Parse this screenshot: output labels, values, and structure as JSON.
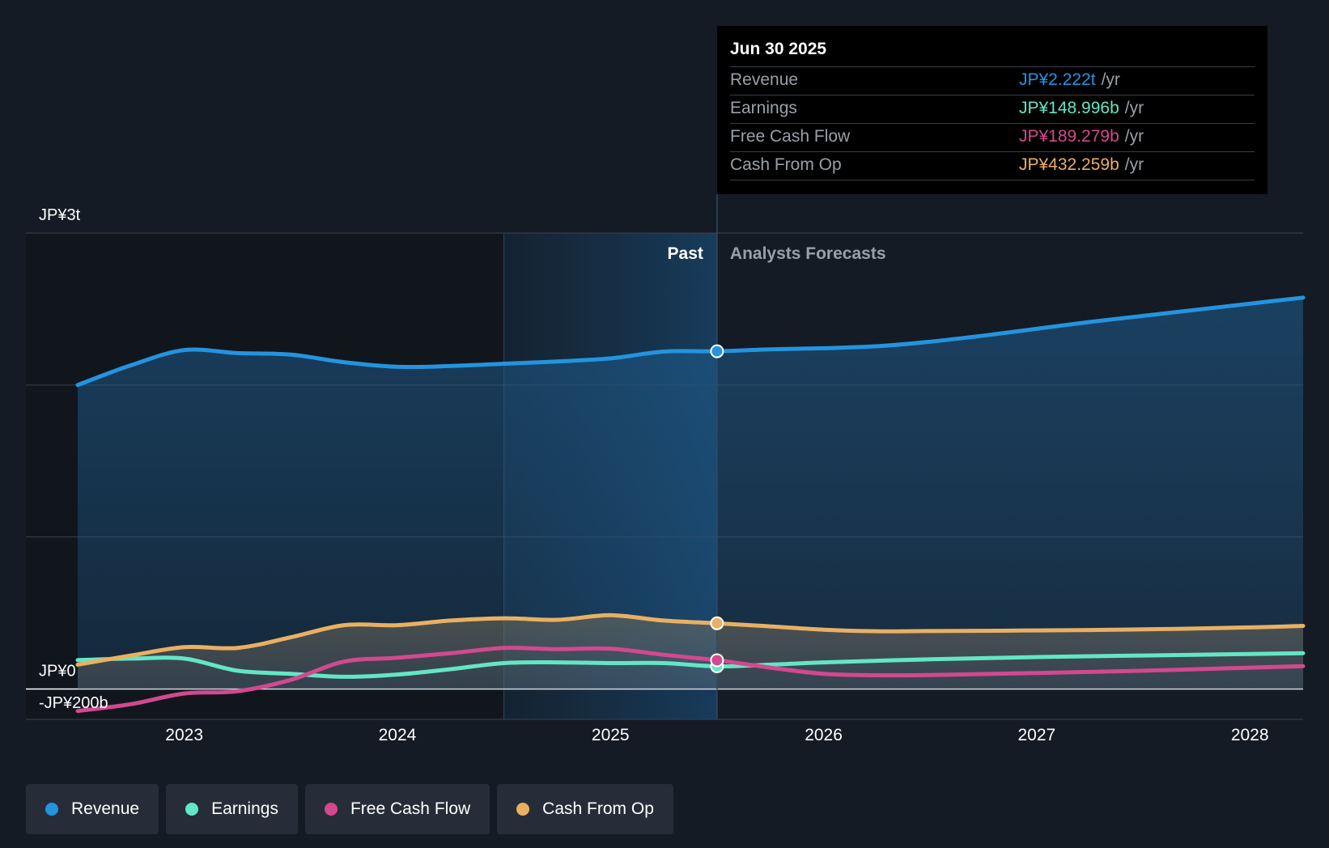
{
  "chart_data": {
    "type": "line",
    "title": "",
    "x_unit": "year",
    "ylim": [
      -200,
      3000
    ],
    "y_unit": "JP¥ billions",
    "y_tick_labels": [
      {
        "value": 3000,
        "label": "JP¥3t"
      },
      {
        "value": 0,
        "label": "JP¥0"
      },
      {
        "value": -200,
        "label": "-JP¥200b"
      }
    ],
    "y_gridlines": [
      3000,
      2000,
      1000,
      0,
      -200
    ],
    "x_ticks": [
      2023,
      2024,
      2025,
      2026,
      2027,
      2028
    ],
    "x_tick_labels": [
      "2023",
      "2024",
      "2025",
      "2026",
      "2027",
      "2028"
    ],
    "x_range": [
      2022.5,
      2028.25
    ],
    "past_label": "Past",
    "forecast_label": "Analysts Forecasts",
    "divider_x": 2025.5,
    "highlight_start_x": 2024.5,
    "series": [
      {
        "name": "Revenue",
        "color": "#2394df",
        "points": [
          [
            2022.5,
            2000
          ],
          [
            2022.75,
            2130
          ],
          [
            2023.0,
            2230
          ],
          [
            2023.25,
            2210
          ],
          [
            2023.5,
            2200
          ],
          [
            2023.75,
            2150
          ],
          [
            2024.0,
            2120
          ],
          [
            2024.25,
            2125
          ],
          [
            2024.5,
            2140
          ],
          [
            2024.75,
            2155
          ],
          [
            2025.0,
            2175
          ],
          [
            2025.25,
            2220
          ],
          [
            2025.5,
            2222
          ],
          [
            2025.75,
            2235
          ],
          [
            2026.0,
            2242
          ],
          [
            2026.25,
            2255
          ],
          [
            2026.5,
            2285
          ],
          [
            2026.75,
            2325
          ],
          [
            2027.0,
            2370
          ],
          [
            2027.25,
            2415
          ],
          [
            2027.5,
            2455
          ],
          [
            2027.75,
            2495
          ],
          [
            2028.0,
            2535
          ],
          [
            2028.25,
            2575
          ]
        ]
      },
      {
        "name": "Earnings",
        "color": "#63e6c6",
        "points": [
          [
            2022.5,
            190
          ],
          [
            2022.75,
            200
          ],
          [
            2023.0,
            200
          ],
          [
            2023.25,
            120
          ],
          [
            2023.5,
            100
          ],
          [
            2023.75,
            80
          ],
          [
            2024.0,
            95
          ],
          [
            2024.25,
            130
          ],
          [
            2024.5,
            170
          ],
          [
            2024.75,
            175
          ],
          [
            2025.0,
            170
          ],
          [
            2025.25,
            170
          ],
          [
            2025.5,
            149
          ],
          [
            2025.75,
            160
          ],
          [
            2026.0,
            175
          ],
          [
            2026.5,
            195
          ],
          [
            2027.0,
            210
          ],
          [
            2027.5,
            220
          ],
          [
            2028.0,
            230
          ],
          [
            2028.25,
            235
          ]
        ]
      },
      {
        "name": "Free Cash Flow",
        "color": "#d3488e",
        "points": [
          [
            2022.5,
            -145
          ],
          [
            2022.75,
            -100
          ],
          [
            2023.0,
            -30
          ],
          [
            2023.25,
            -15
          ],
          [
            2023.5,
            60
          ],
          [
            2023.75,
            180
          ],
          [
            2024.0,
            205
          ],
          [
            2024.25,
            235
          ],
          [
            2024.5,
            270
          ],
          [
            2024.75,
            262
          ],
          [
            2025.0,
            265
          ],
          [
            2025.25,
            225
          ],
          [
            2025.5,
            189
          ],
          [
            2025.75,
            140
          ],
          [
            2026.0,
            100
          ],
          [
            2026.25,
            90
          ],
          [
            2026.5,
            92
          ],
          [
            2027.0,
            105
          ],
          [
            2027.5,
            120
          ],
          [
            2028.0,
            140
          ],
          [
            2028.25,
            150
          ]
        ]
      },
      {
        "name": "Cash From Op",
        "color": "#e9b062",
        "points": [
          [
            2022.5,
            160
          ],
          [
            2022.75,
            220
          ],
          [
            2023.0,
            275
          ],
          [
            2023.25,
            270
          ],
          [
            2023.5,
            340
          ],
          [
            2023.75,
            420
          ],
          [
            2024.0,
            420
          ],
          [
            2024.25,
            450
          ],
          [
            2024.5,
            465
          ],
          [
            2024.75,
            455
          ],
          [
            2025.0,
            485
          ],
          [
            2025.25,
            450
          ],
          [
            2025.5,
            432
          ],
          [
            2025.75,
            412
          ],
          [
            2026.0,
            390
          ],
          [
            2026.25,
            380
          ],
          [
            2026.5,
            381
          ],
          [
            2027.0,
            385
          ],
          [
            2027.5,
            392
          ],
          [
            2028.0,
            405
          ],
          [
            2028.25,
            415
          ]
        ]
      }
    ]
  },
  "tooltip": {
    "date": "Jun 30 2025",
    "rows": [
      {
        "label": "Revenue",
        "value": "JP¥2.222t",
        "unit": "/yr",
        "color": "#2394df"
      },
      {
        "label": "Earnings",
        "value": "JP¥148.996b",
        "unit": "/yr",
        "color": "#63e6c6"
      },
      {
        "label": "Free Cash Flow",
        "value": "JP¥189.279b",
        "unit": "/yr",
        "color": "#d3488e"
      },
      {
        "label": "Cash From Op",
        "value": "JP¥432.259b",
        "unit": "/yr",
        "color": "#e9b062"
      }
    ]
  },
  "legend": [
    {
      "label": "Revenue",
      "color": "#2394df"
    },
    {
      "label": "Earnings",
      "color": "#63e6c6"
    },
    {
      "label": "Free Cash Flow",
      "color": "#d3488e"
    },
    {
      "label": "Cash From Op",
      "color": "#e9b062"
    }
  ]
}
